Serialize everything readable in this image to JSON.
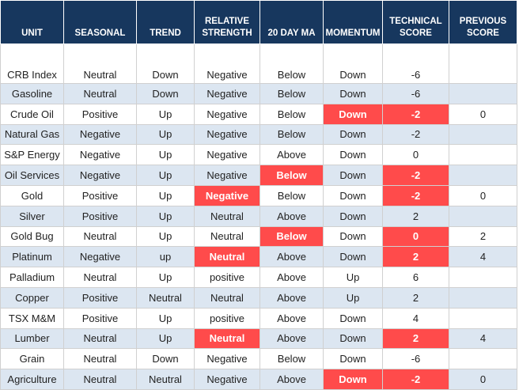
{
  "table": {
    "header": [
      [
        "UNIT"
      ],
      [
        "SEASONAL"
      ],
      [
        "TREND"
      ],
      [
        "RELATIVE",
        "STRENGTH"
      ],
      [
        "20 DAY MA"
      ],
      [
        "MOMENTUM"
      ],
      [
        "TECHNICAL",
        "SCORE"
      ],
      [
        "PREVIOUS",
        "SCORE"
      ]
    ],
    "header_color": "#17375e",
    "stripe_color": "#dce6f1",
    "highlight_color": "#ff4b4b",
    "rows": [
      [
        "CRB Index",
        "Neutral",
        "Down",
        "Negative",
        "Below",
        "Down",
        "-6",
        null
      ],
      [
        "Gasoline",
        "Neutral",
        "Down",
        "Negative",
        "Below",
        "Down",
        "-6",
        null
      ],
      [
        "Crude Oil",
        "Positive",
        "Up",
        "Negative",
        "Below",
        "Down",
        "-2",
        "0"
      ],
      [
        "Natural Gas",
        "Negative",
        "Up",
        "Negative",
        "Below",
        "Down",
        "-2",
        null
      ],
      [
        "S&P Energy",
        "Negative",
        "Up",
        "Negative",
        "Above",
        "Down",
        "0",
        null
      ],
      [
        "Oil Services",
        "Negative",
        "Up",
        "Negative",
        "Below",
        "Down",
        "-2",
        null
      ],
      [
        "Gold",
        "Positive",
        "Up",
        "Negative",
        "Below",
        "Down",
        "-2",
        "0"
      ],
      [
        "Silver",
        "Positive",
        "Up",
        "Neutral",
        "Above",
        "Down",
        "2",
        null
      ],
      [
        "Gold Bug",
        "Neutral",
        "Up",
        "Neutral",
        "Below",
        "Down",
        "0",
        "2"
      ],
      [
        "Platinum",
        "Negative",
        "up",
        "Neutral",
        "Above",
        "Down",
        "2",
        "4"
      ],
      [
        "Palladium",
        "Neutral",
        "Up",
        "positive",
        "Above",
        "Up",
        "6",
        null
      ],
      [
        "Copper",
        "Positive",
        "Neutral",
        "Neutral",
        "Above",
        "Up",
        "2",
        null
      ],
      [
        "TSX M&M",
        "Positive",
        "Up",
        "positive",
        "Above",
        "Down",
        "4",
        null
      ],
      [
        "Lumber",
        "Neutral",
        "Up",
        "Neutral",
        "Above",
        "Down",
        "2",
        "4"
      ],
      [
        "Grain",
        "Neutral",
        "Down",
        "Negative",
        "Below",
        "Down",
        "-6",
        null
      ],
      [
        "Agriculture",
        "Neutral",
        "Neutral",
        "Negative",
        "Above",
        "Down",
        "-2",
        "0"
      ]
    ],
    "highlighted": [
      [
        2,
        5
      ],
      [
        2,
        6
      ],
      [
        5,
        4
      ],
      [
        5,
        6
      ],
      [
        6,
        3
      ],
      [
        6,
        6
      ],
      [
        8,
        4
      ],
      [
        8,
        6
      ],
      [
        9,
        3
      ],
      [
        9,
        6
      ],
      [
        13,
        3
      ],
      [
        13,
        6
      ],
      [
        15,
        5
      ],
      [
        15,
        6
      ]
    ]
  }
}
